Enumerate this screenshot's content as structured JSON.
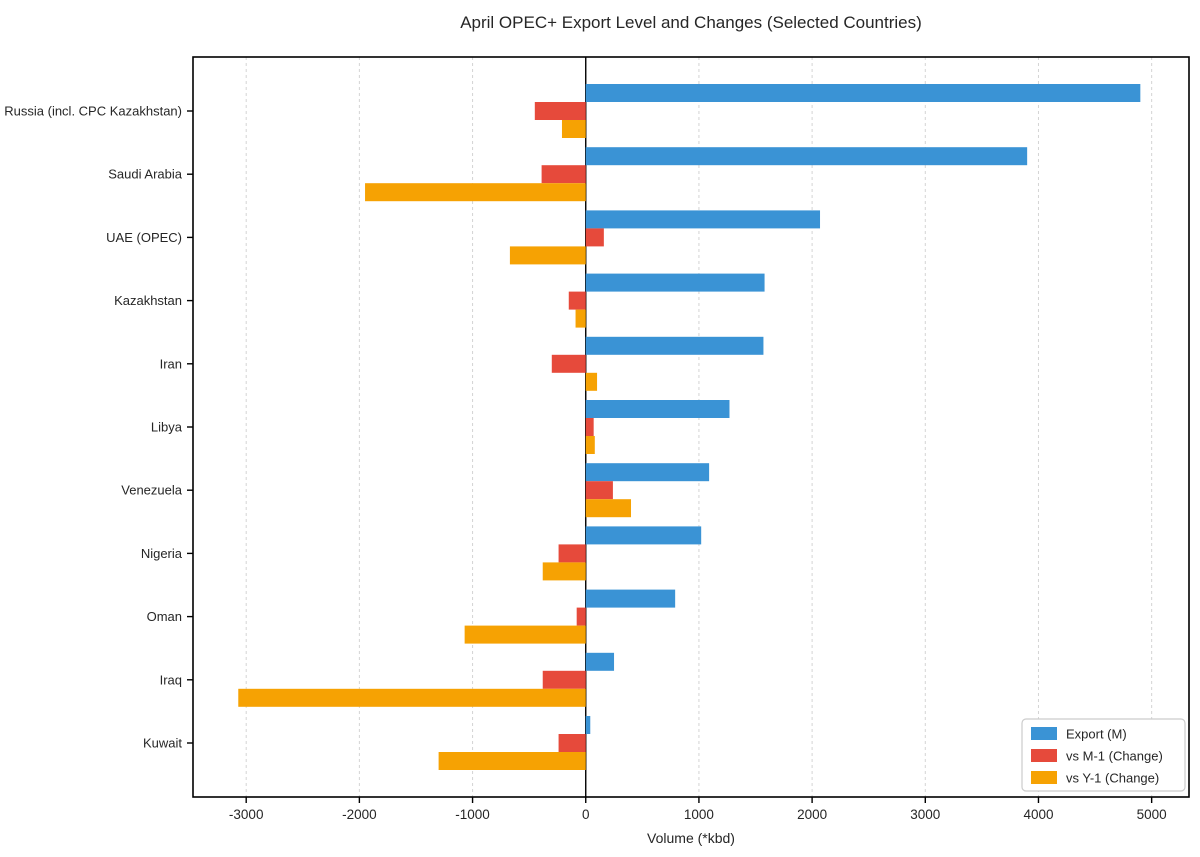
{
  "chart_data": {
    "type": "bar",
    "orientation": "horizontal",
    "title": "April OPEC+ Export Level and Changes (Selected Countries)",
    "xlabel": "Volume (*kbd)",
    "categories": [
      "Russia (incl. CPC Kazakhstan)",
      "Saudi Arabia",
      "UAE (OPEC)",
      "Kazakhstan",
      "Iran",
      "Libya",
      "Venezuela",
      "Nigeria",
      "Oman",
      "Iraq",
      "Kuwait"
    ],
    "series": [
      {
        "name": "Export (M)",
        "color": "#3A93D5",
        "values": [
          4900,
          3900,
          2070,
          1580,
          1570,
          1270,
          1090,
          1020,
          790,
          250,
          40
        ]
      },
      {
        "name": "vs M-1 (Change)",
        "color": "#E64A3B",
        "values": [
          -450,
          -390,
          160,
          -150,
          -300,
          70,
          240,
          -240,
          -80,
          -380,
          -240
        ]
      },
      {
        "name": "vs Y-1 (Change)",
        "color": "#F6A203",
        "values": [
          -210,
          -1950,
          -670,
          -90,
          100,
          80,
          400,
          -380,
          -1070,
          -3070,
          -1300
        ]
      }
    ],
    "xticks": [
      -3000,
      -2000,
      -1000,
      0,
      1000,
      2000,
      3000,
      4000,
      5000
    ],
    "xlim": [
      -3470,
      5330
    ],
    "grid": true,
    "grid_color": "#d4d4d4",
    "axis_color": "#000000",
    "text_color": "#262626",
    "legend_position": "lower right"
  }
}
